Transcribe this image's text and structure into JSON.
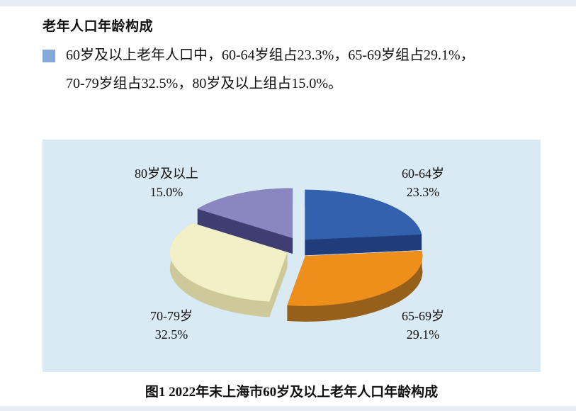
{
  "header": {
    "title": "老年人口年龄构成",
    "legend_color": "#85a9d9",
    "summary_line1": "60岁及以上老年人口中，60-64岁组占23.3%，65-69岁组占29.1%，",
    "summary_line2": "70-79岁组占32.5%，80岁及以上组占15.0%。"
  },
  "caption": {
    "text": "图1  2022年末上海市60岁及以上老年人口年龄构成"
  },
  "chart_data": {
    "type": "pie",
    "title": "图1 2022年末上海市60岁及以上老年人口年龄构成",
    "effect": "3d-exploded",
    "background": "#d9eaf5",
    "start_angle_deg": 90,
    "direction": "clockwise",
    "unit": "%",
    "slices": [
      {
        "label": "60-64岁",
        "value": 23.3,
        "display": "23.3%",
        "color": "#3261ae",
        "side_color": "#203c7a"
      },
      {
        "label": "65-69岁",
        "value": 29.1,
        "display": "29.1%",
        "color": "#ee8e1b",
        "side_color": "#96601a"
      },
      {
        "label": "70-79岁",
        "value": 32.5,
        "display": "32.5%",
        "color": "#f1f0c6",
        "side_color": "#cdc99a"
      },
      {
        "label": "80岁及以上",
        "value": 15.0,
        "display": "15.0%",
        "color": "#8a87c0",
        "side_color": "#3f3d72"
      }
    ]
  }
}
